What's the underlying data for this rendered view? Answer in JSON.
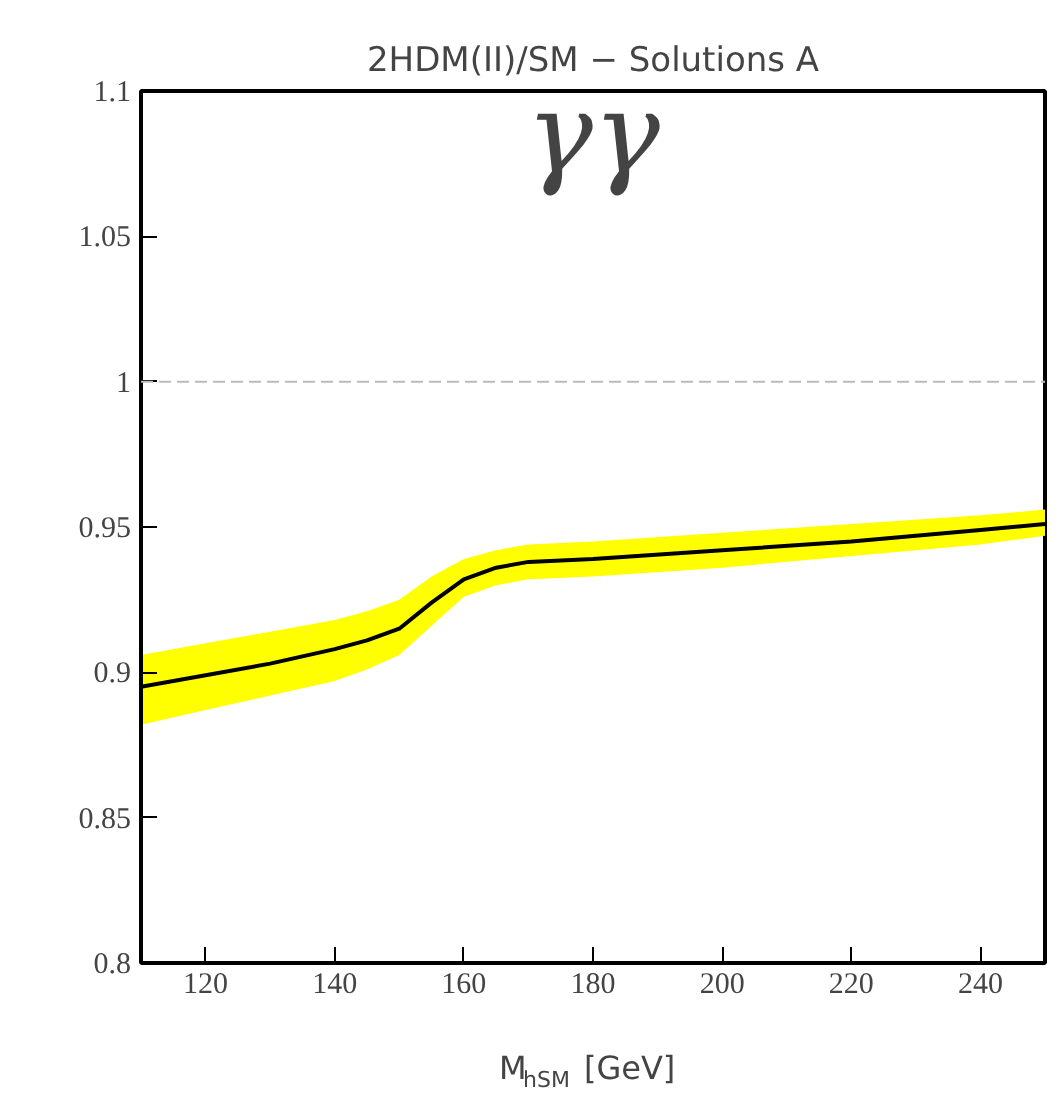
{
  "chart_data": {
    "type": "line",
    "title": "2HDM(II)/SM − Solutions A",
    "xlabel": "M$_{hSM}$ [GeV]",
    "annotations": [
      "γγ"
    ],
    "x": [
      110,
      120,
      130,
      140,
      145,
      150,
      155,
      160,
      165,
      170,
      180,
      200,
      220,
      240,
      250
    ],
    "series": [
      {
        "color": "#000000",
        "values": [
          0.895,
          0.899,
          0.903,
          0.908,
          0.911,
          0.915,
          0.924,
          0.932,
          0.936,
          0.938,
          0.939,
          0.942,
          0.945,
          0.949,
          0.951
        ],
        "lower": [
          0.882,
          0.887,
          0.892,
          0.897,
          0.901,
          0.906,
          0.916,
          0.926,
          0.93,
          0.932,
          0.933,
          0.936,
          0.94,
          0.944,
          0.947
        ],
        "upper": [
          0.906,
          0.91,
          0.914,
          0.918,
          0.921,
          0.925,
          0.933,
          0.939,
          0.942,
          0.944,
          0.945,
          0.948,
          0.951,
          0.954,
          0.956
        ]
      }
    ],
    "xlim": [
      110,
      250
    ],
    "ylim": [
      0.8,
      1.1
    ],
    "xticks": [
      120,
      140,
      160,
      180,
      200,
      220,
      240
    ],
    "yticks": [
      0.8,
      0.85,
      0.9,
      0.95,
      1,
      1.05,
      1.1
    ],
    "ref_lines": [
      {
        "axis": "y",
        "value": 1,
        "color": "#bbbbbb",
        "line_style": "dashed"
      }
    ],
    "grid": false
  }
}
